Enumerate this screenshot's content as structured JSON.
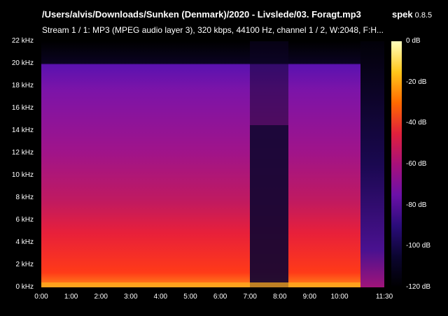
{
  "window": {
    "title": "/Users/alvis/Downloads/Sunken (Denmark)/2020 - Livslede/03. Foragt.mp3",
    "app_name": "spek",
    "app_version": "0.8.5",
    "stream_info": "Stream 1 / 1: MP3 (MPEG audio layer 3), 320 kbps, 44100 Hz, channel 1 / 2, W:2048, F:H..."
  },
  "axes": {
    "y_labels": [
      "22 kHz",
      "20 kHz",
      "18 kHz",
      "16 kHz",
      "14 kHz",
      "12 kHz",
      "10 kHz",
      "8 kHz",
      "6 kHz",
      "4 kHz",
      "2 kHz",
      "0 kHz"
    ],
    "x_labels": [
      "0:00",
      "1:00",
      "2:00",
      "3:00",
      "4:00",
      "5:00",
      "6:00",
      "7:00",
      "8:00",
      "9:00",
      "10:00",
      "11:30"
    ],
    "db_labels": [
      "0 dB",
      "-20 dB",
      "-40 dB",
      "-60 dB",
      "-80 dB",
      "-100 dB",
      "-120 dB"
    ]
  },
  "colors": {
    "gradient": [
      "#000000",
      "#0b0530",
      "#2a0c7a",
      "#6b10a8",
      "#a8107a",
      "#e0203c",
      "#ff6a00",
      "#ffc61a",
      "#ffffbe"
    ]
  }
}
